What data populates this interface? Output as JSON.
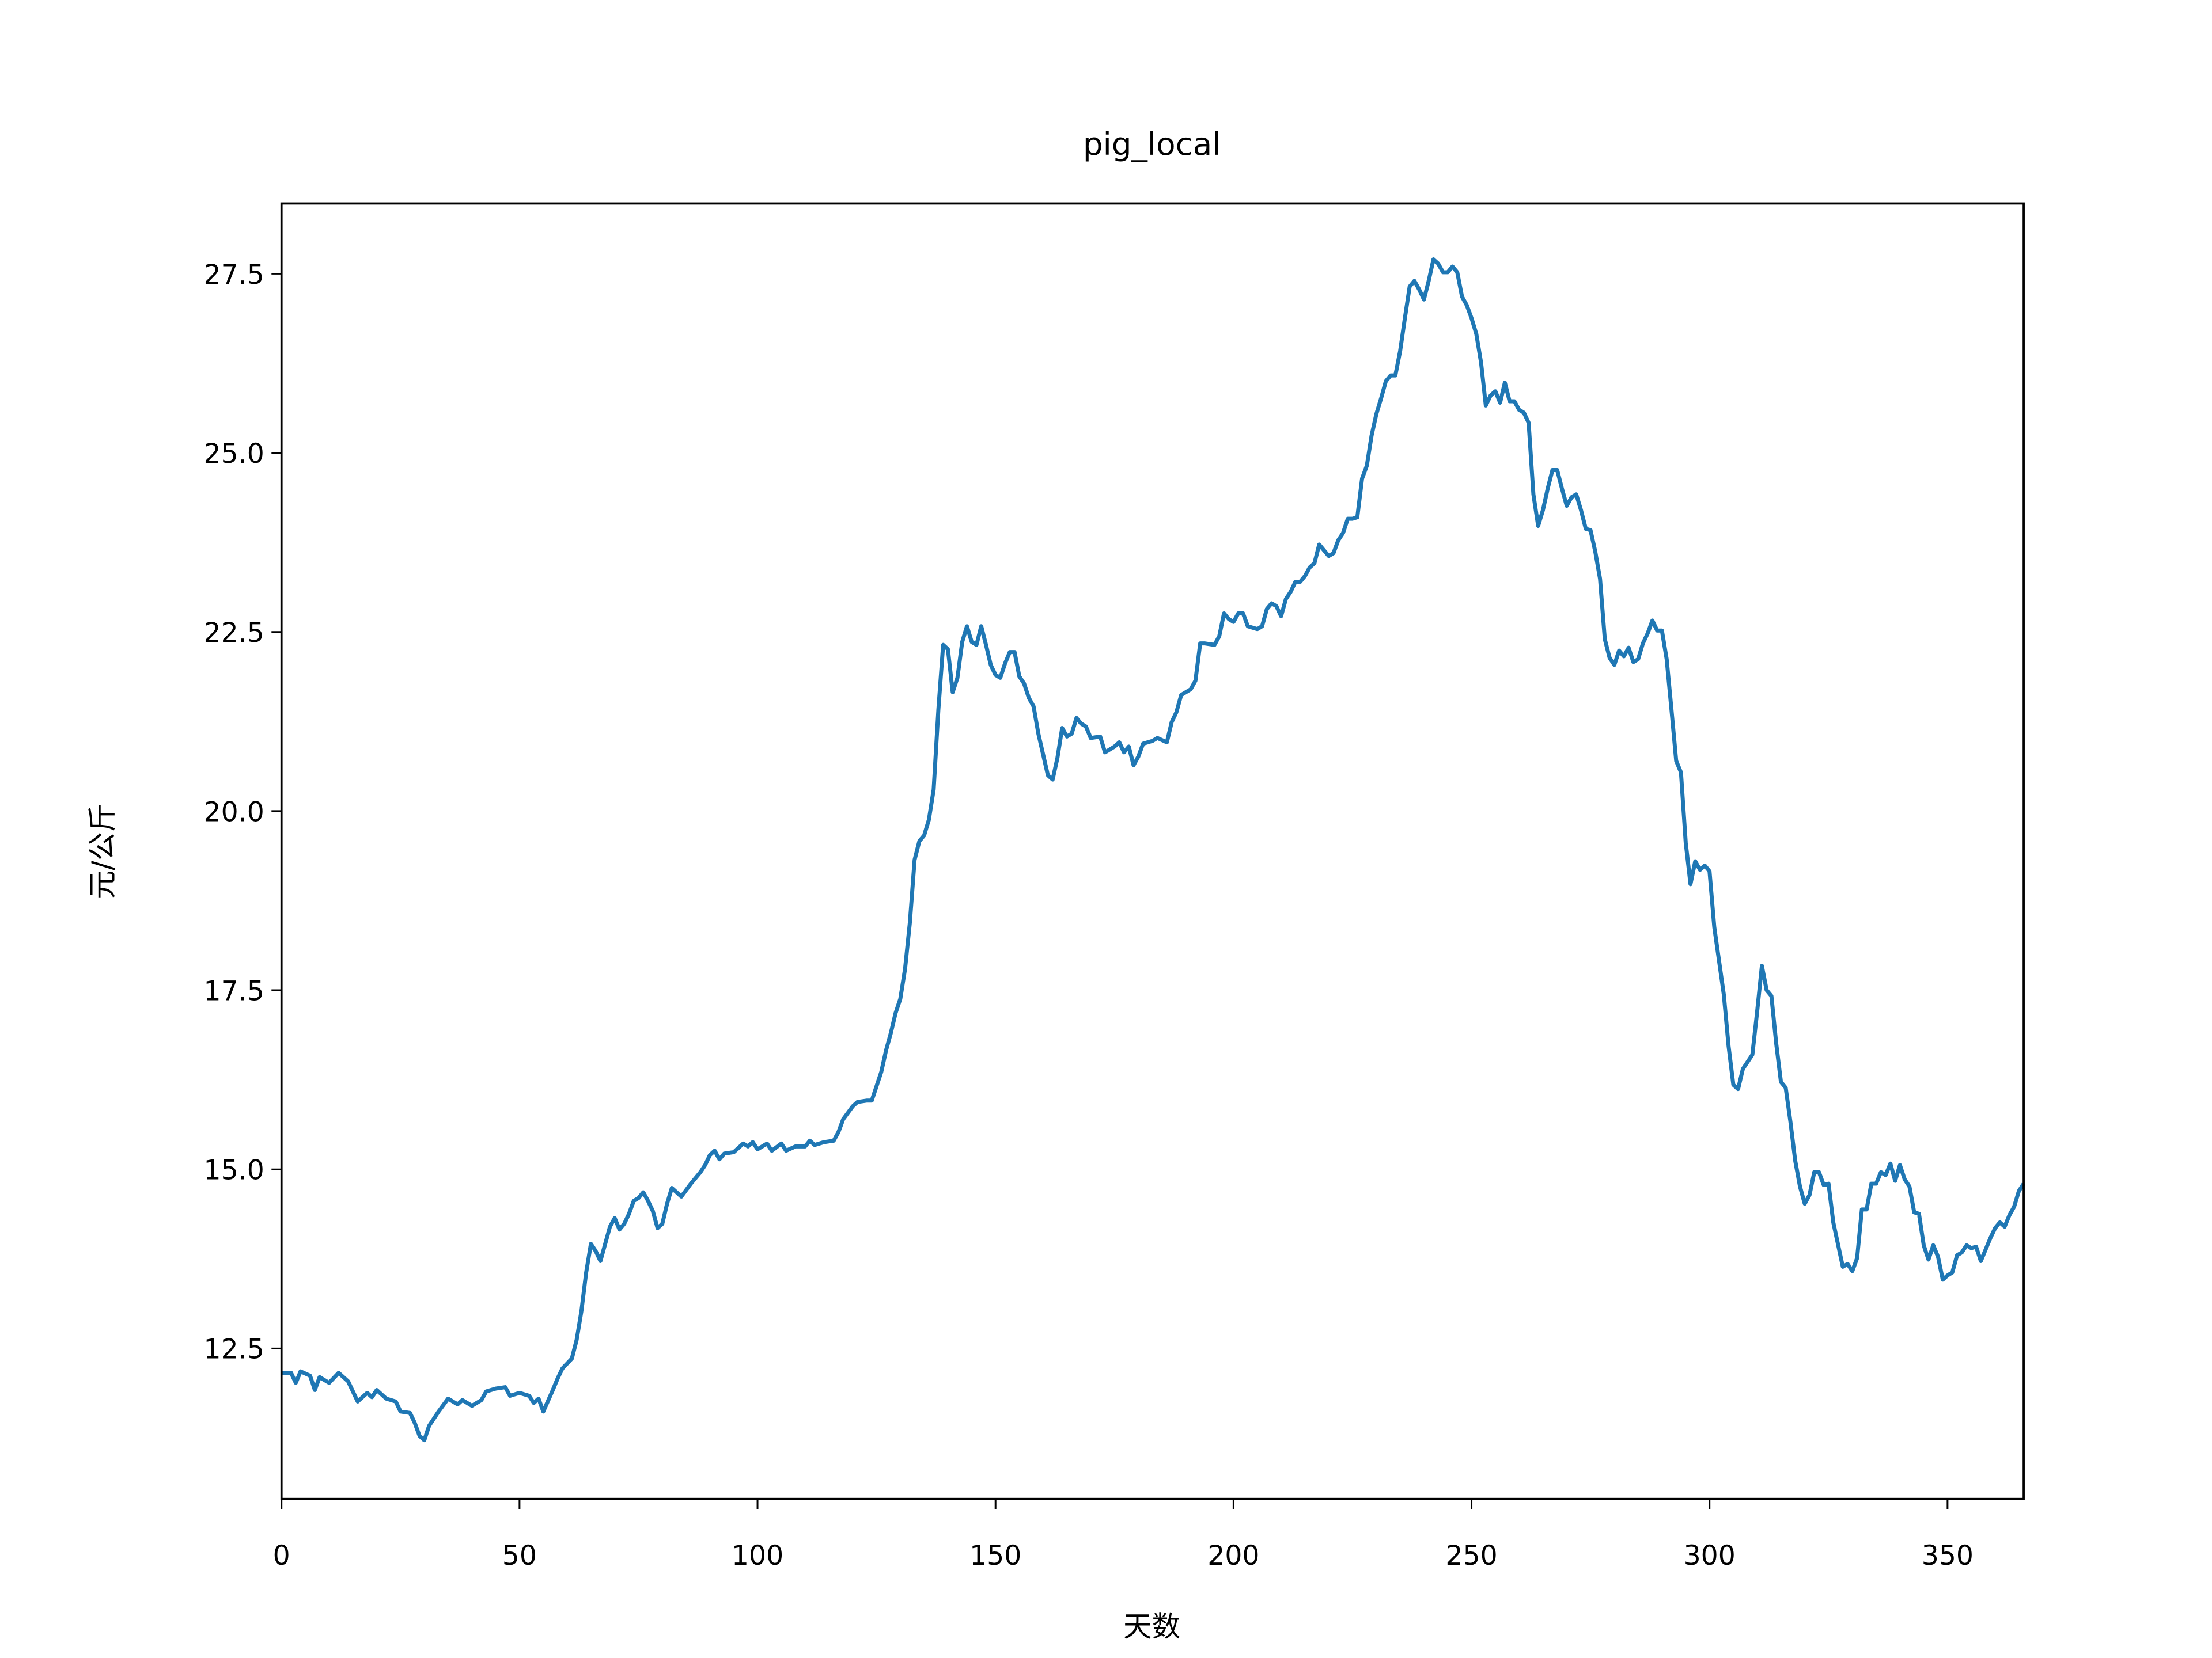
{
  "chart_data": {
    "type": "line",
    "title": "pig_local",
    "x_label": "天数",
    "y_label": "元/公斤",
    "xlim": [
      0,
      366
    ],
    "ylim": [
      10.4,
      28.48
    ],
    "xticks": [
      0,
      50,
      100,
      150,
      200,
      250,
      300,
      350
    ],
    "yticks": [
      12.5,
      {
        "value": 15,
        "label": "15.0"
      },
      17.5,
      {
        "value": 20,
        "label": "20.0"
      },
      22.5,
      {
        "value": 25,
        "label": "25.0"
      },
      27.5
    ],
    "series": [
      {
        "color": "#1f77b4",
        "x": [
          0,
          2,
          3,
          4,
          6,
          7,
          8,
          10,
          12,
          14,
          16,
          18,
          19,
          20,
          22,
          24,
          25,
          27,
          28,
          29,
          30,
          31,
          33,
          35,
          37,
          38,
          40,
          42,
          43,
          45,
          47,
          48,
          50,
          52,
          53,
          54,
          55,
          57,
          58,
          59,
          61,
          62,
          63,
          64,
          65,
          66,
          67,
          68,
          69,
          70,
          71,
          72,
          73,
          74,
          75,
          76,
          77,
          78,
          79,
          80,
          81,
          82,
          84,
          86,
          88,
          89,
          90,
          91,
          92,
          93,
          95,
          97,
          98,
          99,
          100,
          102,
          103,
          105,
          106,
          108,
          110,
          111,
          112,
          114,
          116,
          117,
          118,
          120,
          121,
          123,
          124,
          126,
          127,
          128,
          129,
          130,
          131,
          132,
          133,
          134,
          135,
          136,
          137,
          138,
          139,
          140,
          141,
          142,
          143,
          144,
          145,
          146,
          147,
          148,
          149,
          150,
          151,
          152,
          153,
          154,
          155,
          156,
          157,
          158,
          159,
          161,
          162,
          163,
          164,
          165,
          166,
          167,
          168,
          169,
          170,
          172,
          173,
          175,
          176,
          177,
          178,
          179,
          180,
          181,
          183,
          184,
          186,
          187,
          188,
          189,
          191,
          192,
          193,
          194,
          196,
          197,
          198,
          199,
          200,
          201,
          202,
          203,
          205,
          206,
          207,
          208,
          209,
          210,
          211,
          212,
          213,
          214,
          215,
          216,
          217,
          218,
          219,
          220,
          221,
          222,
          223,
          224,
          225,
          226,
          227,
          228,
          229,
          230,
          231,
          232,
          233,
          234,
          235,
          236,
          237,
          238,
          239,
          240,
          241,
          242,
          243,
          244,
          245,
          246,
          247,
          248,
          249,
          250,
          251,
          252,
          253,
          254,
          255,
          256,
          257,
          258,
          259,
          260,
          261,
          262,
          263,
          264,
          265,
          266,
          267,
          268,
          269,
          270,
          271,
          272,
          273,
          274,
          275,
          276,
          277,
          278,
          279,
          280,
          281,
          282,
          283,
          284,
          285,
          286,
          287,
          288,
          289,
          290,
          291,
          292,
          293,
          294,
          295,
          296,
          297,
          298,
          299,
          300,
          301,
          303,
          304,
          305,
          306,
          307,
          309,
          310,
          311,
          312,
          313,
          314,
          315,
          316,
          317,
          318,
          319,
          320,
          321,
          322,
          323,
          324,
          325,
          326,
          328,
          329,
          330,
          331,
          332,
          333,
          334,
          335,
          336,
          337,
          338,
          339,
          340,
          341,
          342,
          343,
          344,
          345,
          346,
          347,
          348,
          349,
          350,
          351,
          352,
          353,
          354,
          355,
          356,
          357,
          358,
          359,
          360,
          361,
          362,
          363,
          364,
          365,
          366
        ],
        "values": [
          12.16,
          12.16,
          12.02,
          12.18,
          12.12,
          11.92,
          12.1,
          12.02,
          12.16,
          12.04,
          11.76,
          11.88,
          11.82,
          11.92,
          11.8,
          11.76,
          11.62,
          11.6,
          11.46,
          11.28,
          11.22,
          11.42,
          11.62,
          11.8,
          11.72,
          11.78,
          11.7,
          11.78,
          11.9,
          11.94,
          11.96,
          11.84,
          11.88,
          11.84,
          11.74,
          11.8,
          11.62,
          11.92,
          12.08,
          12.22,
          12.36,
          12.62,
          13.02,
          13.56,
          13.96,
          13.86,
          13.72,
          13.96,
          14.2,
          14.32,
          14.16,
          14.24,
          14.38,
          14.56,
          14.6,
          14.68,
          14.56,
          14.42,
          14.18,
          14.24,
          14.52,
          14.74,
          14.62,
          14.8,
          14.96,
          15.06,
          15.2,
          15.26,
          15.14,
          15.22,
          15.24,
          15.36,
          15.32,
          15.38,
          15.28,
          15.36,
          15.26,
          15.36,
          15.26,
          15.32,
          15.32,
          15.4,
          15.34,
          15.38,
          15.4,
          15.52,
          15.7,
          15.88,
          15.94,
          15.96,
          15.96,
          16.36,
          16.66,
          16.9,
          17.18,
          17.38,
          17.8,
          18.44,
          19.32,
          19.58,
          19.66,
          19.88,
          20.3,
          21.42,
          22.32,
          22.26,
          21.66,
          21.86,
          22.36,
          22.58,
          22.36,
          22.32,
          22.58,
          22.32,
          22.04,
          21.9,
          21.86,
          22.06,
          22.22,
          22.22,
          21.88,
          21.78,
          21.58,
          21.46,
          21.08,
          20.5,
          20.44,
          20.74,
          21.16,
          21.04,
          21.08,
          21.3,
          21.22,
          21.18,
          21.02,
          21.04,
          20.82,
          20.9,
          20.96,
          20.82,
          20.9,
          20.64,
          20.76,
          20.94,
          20.98,
          21.02,
          20.96,
          21.24,
          21.38,
          21.62,
          21.7,
          21.82,
          22.34,
          22.34,
          22.32,
          22.44,
          22.76,
          22.68,
          22.64,
          22.76,
          22.76,
          22.58,
          22.54,
          22.58,
          22.82,
          22.9,
          22.86,
          22.72,
          22.96,
          23.06,
          23.2,
          23.2,
          23.28,
          23.4,
          23.46,
          23.72,
          23.64,
          23.56,
          23.6,
          23.78,
          23.88,
          24.08,
          24.08,
          24.1,
          24.64,
          24.82,
          25.24,
          25.54,
          25.76,
          26.0,
          26.08,
          26.08,
          26.42,
          26.88,
          27.32,
          27.4,
          27.28,
          27.14,
          27.4,
          27.7,
          27.64,
          27.52,
          27.52,
          27.6,
          27.52,
          27.18,
          27.06,
          26.88,
          26.66,
          26.26,
          25.66,
          25.8,
          25.86,
          25.7,
          25.98,
          25.72,
          25.72,
          25.6,
          25.56,
          25.42,
          24.42,
          23.98,
          24.2,
          24.5,
          24.76,
          24.76,
          24.5,
          24.26,
          24.38,
          24.42,
          24.2,
          23.94,
          23.92,
          23.62,
          23.24,
          22.4,
          22.14,
          22.04,
          22.24,
          22.16,
          22.28,
          22.08,
          22.12,
          22.34,
          22.48,
          22.66,
          22.52,
          22.52,
          22.12,
          21.42,
          20.7,
          20.54,
          19.56,
          18.98,
          19.3,
          19.18,
          19.24,
          19.16,
          18.38,
          17.44,
          16.72,
          16.18,
          16.12,
          16.4,
          16.6,
          17.2,
          17.84,
          17.5,
          17.42,
          16.76,
          16.22,
          16.14,
          15.66,
          15.12,
          14.76,
          14.52,
          14.64,
          14.96,
          14.96,
          14.78,
          14.8,
          14.26,
          13.64,
          13.68,
          13.58,
          13.76,
          14.44,
          14.44,
          14.8,
          14.8,
          14.96,
          14.92,
          15.08,
          14.84,
          15.06,
          14.86,
          14.76,
          14.4,
          14.38,
          13.94,
          13.74,
          13.94,
          13.78,
          13.46,
          13.52,
          13.56,
          13.8,
          13.84,
          13.94,
          13.9,
          13.92,
          13.72,
          13.88,
          14.04,
          14.18,
          14.26,
          14.2,
          14.36,
          14.48,
          14.7,
          14.8
        ]
      }
    ]
  }
}
